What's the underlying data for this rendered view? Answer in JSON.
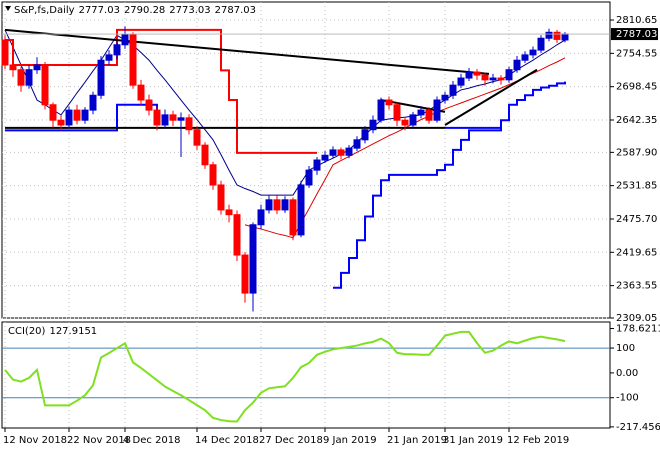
{
  "chart_data": [
    {
      "type": "candlestick",
      "title": "S&P,fs,Daily",
      "categories": [
        "12 Nov 2018",
        null,
        null,
        null,
        null,
        null,
        null,
        null,
        "22 Nov 2018",
        null,
        null,
        null,
        null,
        null,
        null,
        "4 Dec 2018",
        null,
        null,
        null,
        null,
        null,
        null,
        null,
        null,
        "14 Dec 2018",
        null,
        null,
        null,
        null,
        null,
        null,
        null,
        "27 Dec 2018",
        null,
        null,
        null,
        null,
        null,
        null,
        null,
        "9 Jan 2019",
        null,
        null,
        null,
        null,
        null,
        null,
        null,
        "21 Jan 2019",
        null,
        null,
        null,
        null,
        null,
        null,
        "31 Jan 2019",
        null,
        null,
        null,
        null,
        null,
        null,
        null,
        "12 Feb 2019",
        null,
        null,
        null,
        null,
        null,
        null,
        null
      ],
      "open": [
        2777,
        2735,
        2727,
        2701,
        2727,
        2735,
        2668,
        2642,
        2634,
        2659,
        2642,
        2659,
        2684,
        2743,
        2752,
        2769,
        2786,
        2701,
        2676,
        2659,
        2634,
        2651,
        2642,
        2646,
        2626,
        2600,
        2567,
        2533,
        2491,
        2483,
        2415,
        2351,
        2466,
        2491,
        2508,
        2491,
        2508,
        2449,
        2533,
        2558,
        2575,
        2583,
        2592,
        2583,
        2595,
        2609,
        2626,
        2642,
        2676,
        2668,
        2642,
        2634,
        2651,
        2659,
        2642,
        2676,
        2684,
        2701,
        2713,
        2723,
        2718,
        2710,
        2713,
        2710,
        2727,
        2743,
        2752,
        2760,
        2780,
        2790,
        2777.03
      ],
      "high": [
        2785,
        2745,
        2732,
        2735,
        2748,
        2740,
        2672,
        2650,
        2665,
        2668,
        2664,
        2690,
        2750,
        2760,
        2775,
        2800,
        2790,
        2710,
        2685,
        2665,
        2660,
        2658,
        2655,
        2652,
        2632,
        2605,
        2572,
        2540,
        2500,
        2490,
        2420,
        2470,
        2500,
        2515,
        2515,
        2514,
        2512,
        2540,
        2565,
        2580,
        2590,
        2598,
        2596,
        2600,
        2615,
        2632,
        2650,
        2680,
        2682,
        2672,
        2648,
        2656,
        2666,
        2664,
        2682,
        2690,
        2708,
        2720,
        2730,
        2728,
        2722,
        2720,
        2718,
        2732,
        2750,
        2758,
        2766,
        2785,
        2796,
        2794,
        2790.28
      ],
      "low": [
        2728,
        2715,
        2690,
        2695,
        2720,
        2660,
        2630,
        2625,
        2628,
        2635,
        2636,
        2652,
        2678,
        2735,
        2745,
        2762,
        2695,
        2668,
        2650,
        2625,
        2628,
        2632,
        2580,
        2618,
        2592,
        2560,
        2525,
        2483,
        2470,
        2405,
        2335,
        2320,
        2458,
        2485,
        2484,
        2486,
        2440,
        2445,
        2528,
        2550,
        2570,
        2578,
        2576,
        2578,
        2590,
        2603,
        2620,
        2638,
        2660,
        2632,
        2625,
        2628,
        2645,
        2636,
        2638,
        2670,
        2678,
        2696,
        2708,
        2710,
        2700,
        2704,
        2702,
        2705,
        2722,
        2738,
        2746,
        2755,
        2775,
        2772,
        2773.03
      ],
      "close": [
        2735,
        2727,
        2701,
        2727,
        2735,
        2668,
        2642,
        2634,
        2659,
        2642,
        2659,
        2684,
        2743,
        2752,
        2769,
        2786,
        2701,
        2676,
        2659,
        2634,
        2651,
        2642,
        2646,
        2626,
        2600,
        2567,
        2533,
        2491,
        2483,
        2415,
        2351,
        2466,
        2491,
        2508,
        2491,
        2508,
        2449,
        2533,
        2558,
        2575,
        2583,
        2592,
        2583,
        2595,
        2609,
        2626,
        2642,
        2676,
        2668,
        2642,
        2634,
        2651,
        2659,
        2642,
        2676,
        2684,
        2701,
        2713,
        2723,
        2718,
        2710,
        2713,
        2710,
        2727,
        2743,
        2752,
        2760,
        2780,
        2790,
        2778,
        2787.03
      ],
      "up_color": "#0000cd",
      "down_color": "#ff0000",
      "ylim": [
        2309.05,
        2841
      ],
      "yticks": [
        2810.65,
        2754.55,
        2698.45,
        2642.35,
        {
          "value": 2587.9,
          "label": "2587.90"
        },
        2531.85,
        {
          "value": 2475.7,
          "label": "2475.70"
        },
        2419.65,
        2363.55,
        2309.05
      ],
      "grid": true,
      "series": [
        {
          "color": "#00008b",
          "width": 1,
          "values": [
            2794,
            2765,
            2735,
            2706,
            2676,
            2668,
            2659,
            2651,
            2669,
            2688,
            2706,
            2725,
            2743,
            2764,
            2785,
            2777,
            2768,
            2756,
            2743,
            2726,
            2710,
            2693,
            2676,
            2659,
            2643,
            2626,
            2609,
            2584,
            2558,
            2533,
            2527,
            2522,
            2516,
            2516,
            2516,
            2516,
            2516,
            2537,
            2558,
            2565,
            2572,
            2578,
            2585,
            2592,
            2605,
            2617,
            2630,
            2642,
            2644,
            2646,
            2647,
            2649,
            2651,
            2659,
            2668,
            2676,
            2685,
            2693,
            2696,
            2700,
            2703,
            2707,
            2710,
            2718,
            2727,
            2735,
            2743,
            2752,
            2760,
            2769,
            2777
          ]
        },
        {
          "color": "#e00000",
          "width": 1,
          "values": [
            null,
            null,
            null,
            null,
            null,
            null,
            null,
            null,
            null,
            null,
            null,
            null,
            null,
            null,
            null,
            null,
            null,
            null,
            null,
            null,
            null,
            null,
            null,
            null,
            null,
            null,
            null,
            null,
            null,
            null,
            2466,
            2462,
            2459,
            2455,
            2451,
            2448,
            2444,
            2469,
            2493,
            2518,
            2542,
            2567,
            2574,
            2581,
            2588,
            2595,
            2602,
            2609,
            2616,
            2622,
            2629,
            2636,
            2643,
            2649,
            2656,
            2661,
            2666,
            2671,
            2676,
            2681,
            2686,
            2691,
            2696,
            2702,
            2708,
            2715,
            2721,
            2727,
            2734,
            2740,
            2747
          ]
        },
        {
          "color": "#ff0000",
          "width": 2,
          "step": true,
          "values": [
            2777,
            2735,
            2735,
            2735,
            2735,
            2735,
            2735,
            2735,
            2735,
            2735,
            2735,
            2735,
            2735,
            2735,
            2794,
            2794,
            2794,
            2794,
            2794,
            2794,
            2794,
            2794,
            2794,
            2794,
            2794,
            2794,
            2794,
            2726,
            2676,
            2587,
            2587,
            2587,
            2587,
            2587,
            2587,
            2587,
            2587,
            2587,
            2587,
            2587,
            null,
            null,
            null,
            null,
            null,
            null,
            null,
            null,
            null,
            null,
            null,
            null,
            null,
            null,
            null,
            null,
            null,
            null,
            null,
            null,
            null,
            null,
            null,
            null,
            null,
            null,
            null,
            null,
            null,
            null,
            null
          ]
        },
        {
          "color": "#0000ff",
          "width": 2,
          "step": true,
          "values": [
            2625,
            2625,
            2625,
            2625,
            2625,
            2625,
            2625,
            2625,
            2625,
            2625,
            2625,
            2625,
            2625,
            2625,
            2668,
            2668,
            2668,
            2668,
            2668,
            2634,
            null,
            null,
            null,
            null,
            null,
            null,
            null,
            null,
            null,
            null,
            null,
            null,
            null,
            null,
            null,
            null,
            null,
            null,
            null,
            null,
            null,
            2360,
            2385,
            2410,
            2440,
            2480,
            2515,
            2541,
            2550,
            2550,
            2550,
            2550,
            2550,
            2550,
            2558,
            2567,
            2592,
            2609,
            2625,
            2625,
            2625,
            2625,
            2642,
            2668,
            2676,
            2684,
            2693,
            2697,
            2700,
            2704,
            2707
          ]
        }
      ],
      "trendlines": [
        {
          "color": "#000000",
          "x": [
            0,
            60.5
          ],
          "y": [
            2794,
            2720
          ]
        },
        {
          "color": "#000000",
          "x": [
            0,
            55
          ],
          "y": [
            2629,
            2629
          ]
        },
        {
          "color": "#000000",
          "x": [
            55,
            66.5
          ],
          "y": [
            2634,
            2727
          ]
        },
        {
          "color": "#000000",
          "x": [
            47,
            55
          ],
          "y": [
            2676,
            2656
          ]
        },
        {
          "color": "#0000ff",
          "x": [
            55,
            62
          ],
          "y": [
            2629,
            2629
          ]
        }
      ]
    },
    {
      "type": "line",
      "title": "CCI(20)",
      "ylim": [
        -222,
        205
      ],
      "yticks": [
        178.6211,
        100,
        {
          "value": 0,
          "label": "0.00"
        },
        -100,
        -217.4567
      ],
      "levels": [
        100,
        -100
      ],
      "level_color": "#4682b4",
      "series": [
        {
          "color": "#7fe01f",
          "width": 2,
          "values": [
            12,
            -27,
            -35,
            -20,
            12,
            -131,
            -131,
            -131,
            -131,
            -112,
            -90,
            -50,
            62,
            80,
            100,
            119,
            42,
            20,
            -5,
            -30,
            -55,
            -73,
            -90,
            -110,
            -130,
            -150,
            -181,
            -190,
            -195,
            -196,
            -150,
            -120,
            -80,
            -62,
            -58,
            -54,
            -20,
            23,
            40,
            73,
            85,
            95,
            100,
            105,
            110,
            119,
            125,
            138,
            120,
            81,
            75,
            75,
            73,
            73,
            110,
            150,
            158,
            165,
            165,
            120,
            81,
            90,
            110,
            127,
            119,
            130,
            140,
            146,
            140,
            135,
            127.9151
          ]
        }
      ]
    }
  ]
}
